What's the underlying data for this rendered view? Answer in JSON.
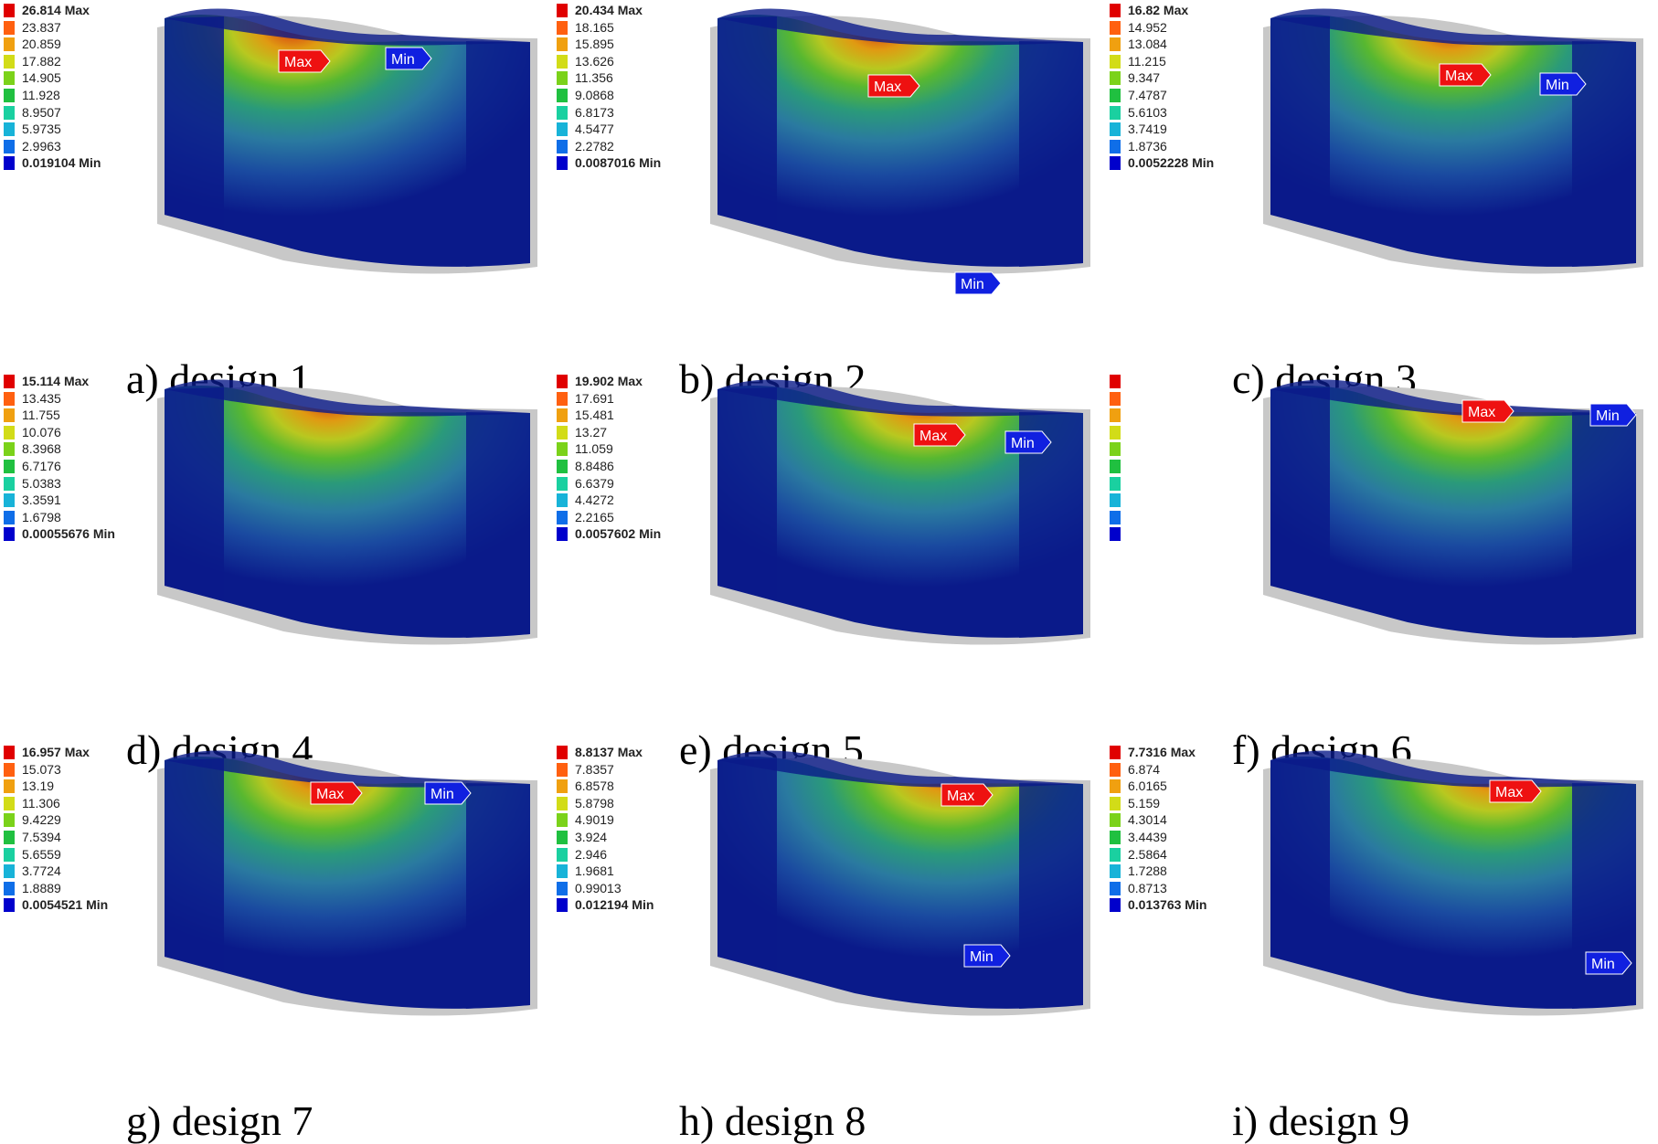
{
  "colors": {
    "scale": [
      "#0000cc",
      "#0f6ee8",
      "#18b3d8",
      "#1ad0a0",
      "#20c040",
      "#7bd21a",
      "#d2dc18",
      "#f0a010",
      "#ff6010",
      "#e00000"
    ],
    "body_dark": "#0a1a8a",
    "body_mid": "#2a6aa8",
    "max_tag": "#ee1111",
    "min_tag": "#1020e0"
  },
  "panels": [
    {
      "caption": "a) design 1",
      "max_label": "Max",
      "min_label": "Min",
      "legend": [
        "26.814 Max",
        "23.837",
        "20.859",
        "17.882",
        "14.905",
        "11.928",
        "8.9507",
        "5.9735",
        "2.9963",
        "0.019104 Min"
      ]
    },
    {
      "caption": "b) design 2",
      "max_label": "Max",
      "min_label": "Min",
      "legend": [
        "20.434 Max",
        "18.165",
        "15.895",
        "13.626",
        "11.356",
        "9.0868",
        "6.8173",
        "4.5477",
        "2.2782",
        "0.0087016 Min"
      ]
    },
    {
      "caption": "c) design 3",
      "max_label": "Max",
      "min_label": "Min",
      "legend": [
        "16.82 Max",
        "14.952",
        "13.084",
        "11.215",
        "9.347",
        "7.4787",
        "5.6103",
        "3.7419",
        "1.8736",
        "0.0052228 Min"
      ]
    },
    {
      "caption": "d) design 4",
      "max_label": "",
      "min_label": "",
      "legend": [
        "15.114 Max",
        "13.435",
        "11.755",
        "10.076",
        "8.3968",
        "6.7176",
        "5.0383",
        "3.3591",
        "1.6798",
        "0.00055676 Min"
      ]
    },
    {
      "caption": "e) design 5",
      "max_label": "Max",
      "min_label": "Min",
      "legend": [
        "19.902 Max",
        "17.691",
        "15.481",
        "13.27",
        "11.059",
        "8.8486",
        "6.6379",
        "4.4272",
        "2.2165",
        "0.0057602 Min"
      ]
    },
    {
      "caption": "f) design 6",
      "max_label": "Max",
      "min_label": "Min",
      "legend": [
        "",
        "",
        "",
        "",
        "",
        "",
        "",
        "",
        "",
        ""
      ]
    },
    {
      "caption": "g) design 7",
      "max_label": "Max",
      "min_label": "Min",
      "legend": [
        "16.957 Max",
        "15.073",
        "13.19",
        "11.306",
        "9.4229",
        "7.5394",
        "5.6559",
        "3.7724",
        "1.8889",
        "0.0054521 Min"
      ]
    },
    {
      "caption": "h) design 8",
      "max_label": "Max",
      "min_label": "Min",
      "legend": [
        "8.8137 Max",
        "7.8357",
        "6.8578",
        "5.8798",
        "4.9019",
        "3.924",
        "2.946",
        "1.9681",
        "0.99013",
        "0.012194 Min"
      ]
    },
    {
      "caption": "i) design 9",
      "max_label": "Max",
      "min_label": "Min",
      "legend": [
        "7.7316 Max",
        "6.874",
        "6.0165",
        "5.159",
        "4.3014",
        "3.4439",
        "2.5864",
        "1.7288",
        "0.8713",
        "0.013763 Min"
      ]
    }
  ]
}
